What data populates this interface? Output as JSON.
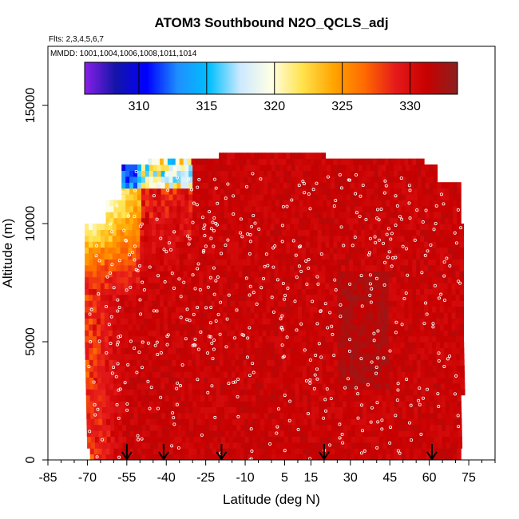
{
  "chart_data": {
    "type": "heatmap",
    "title": "ATOM3 Southbound N2O_QCLS_adj",
    "subtitle_flights": "Flts: 2,3,4,5,6,7",
    "subtitle_dates": "MMDD: 1001,1004,1006,1008,1011,1014",
    "xlabel": "Latitude (deg N)",
    "ylabel": "Altitude (m)",
    "xlim": [
      -85,
      85
    ],
    "ylim": [
      0,
      17500
    ],
    "x_ticks": [
      -85,
      -70,
      -55,
      -40,
      -25,
      -10,
      5,
      15,
      30,
      45,
      60,
      75
    ],
    "x_minor_ticks": [
      -80,
      -75,
      -65,
      -60,
      -50,
      -45,
      -35,
      -30,
      -20,
      -15,
      -5,
      0,
      10,
      20,
      25,
      35,
      40,
      50,
      55,
      65,
      70,
      80,
      85
    ],
    "y_ticks": [
      0,
      5000,
      10000,
      15000
    ],
    "colorbar": {
      "min": 306,
      "max": 333.5,
      "ticks": [
        310,
        315,
        320,
        325,
        330
      ],
      "colors": [
        "#8a1fe8",
        "#1414a8",
        "#0000ff",
        "#1e90ff",
        "#00bfff",
        "#cce9ff",
        "#ffffe6",
        "#ffe34d",
        "#ffa500",
        "#ff6a00",
        "#e61a1a",
        "#c80000",
        "#8b2020"
      ]
    },
    "flight_marker_latitudes": [
      -55,
      -41,
      -19,
      20,
      61
    ],
    "data_region": {
      "lat_range": [
        -70,
        72
      ],
      "alt_range": [
        0,
        13000
      ]
    },
    "value_field_note": "N2O mostly 329-333 ppb; lower values (315-326) at high southern latitudes above 7000 m"
  }
}
